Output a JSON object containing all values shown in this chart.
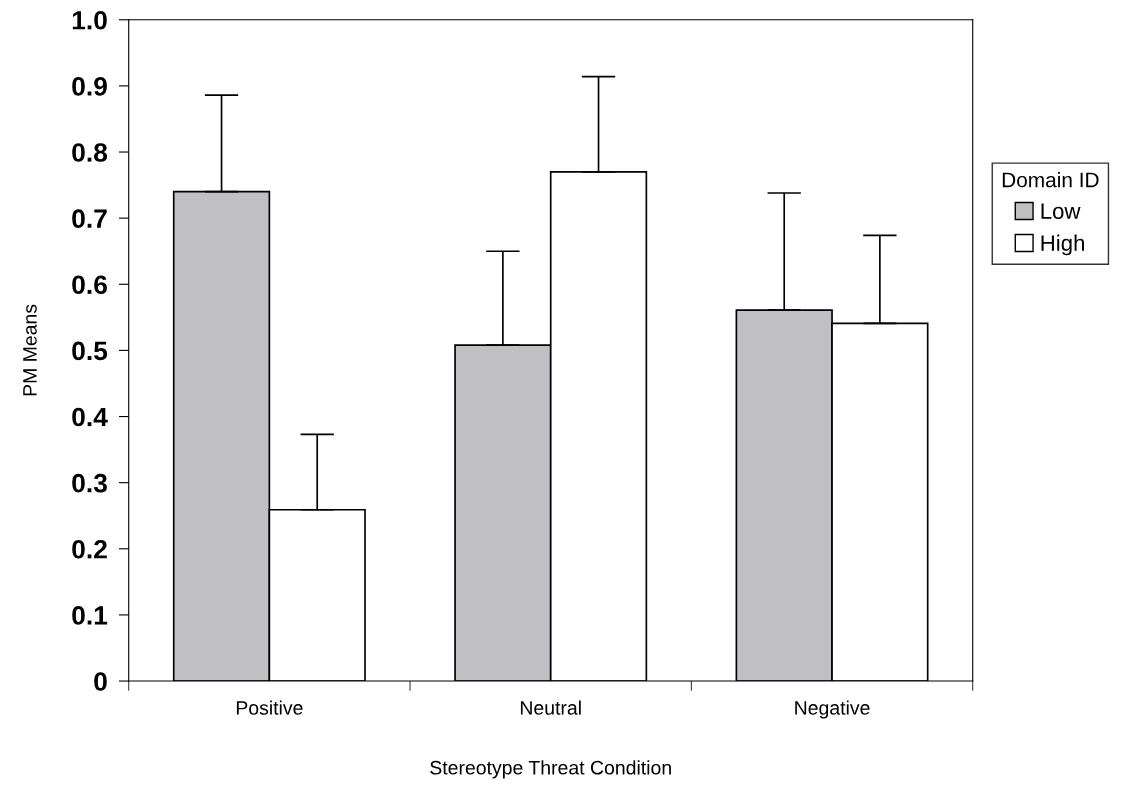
{
  "chart_data": {
    "type": "bar",
    "xlabel": "Stereotype Threat Condition",
    "ylabel": "PM Means",
    "legend_title": "Domain ID",
    "categories": [
      "Positive",
      "Neutral",
      "Negative"
    ],
    "series": [
      {
        "name": "Low",
        "color": "#c0bfc4",
        "values": [
          0.74,
          0.508,
          0.561
        ],
        "errors": [
          [
            0.74,
            0.886
          ],
          [
            0.508,
            0.65
          ],
          [
            0.561,
            0.738
          ]
        ]
      },
      {
        "name": "High",
        "color": "#ffffff",
        "values": [
          0.259,
          0.77,
          0.541
        ],
        "errors": [
          [
            0.259,
            0.373
          ],
          [
            0.77,
            0.914
          ],
          [
            0.541,
            0.674
          ]
        ]
      }
    ],
    "ylim": [
      0,
      1.0
    ],
    "yticks": [
      0,
      {
        "value": 0.1,
        "label": "0.1"
      },
      {
        "value": 0.2,
        "label": "0.2"
      },
      {
        "value": 0.3,
        "label": "0.3"
      },
      {
        "value": 0.4,
        "label": "0.4"
      },
      {
        "value": 0.5,
        "label": "0.5"
      },
      {
        "value": 0.6,
        "label": "0.6"
      },
      {
        "value": 0.7,
        "label": "0.7"
      },
      {
        "value": 0.8,
        "label": "0.8"
      },
      {
        "value": 0.9,
        "label": "0.9"
      },
      {
        "value": 1.0,
        "label": "1.0"
      }
    ],
    "grid": false,
    "legend": "right"
  }
}
